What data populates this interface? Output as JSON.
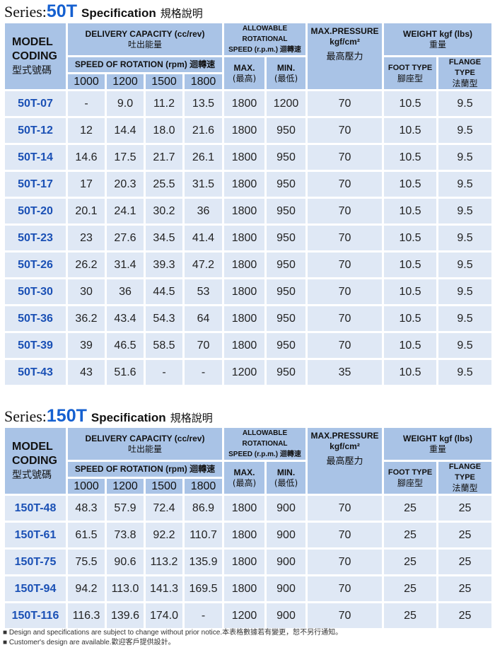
{
  "headers": {
    "model": "MODEL",
    "coding": "CODING",
    "model_cn": "型式號碼",
    "delivery": "DELIVERY CAPACITY (cc/rev)",
    "delivery_cn": "吐出能量",
    "speed_rot": "SPEED OF ROTATION (rpm) 迴轉速",
    "allow": "ALLOWABLE ROTATIONAL",
    "allow2": "SPEED (r.p.m.) 迴轉速",
    "max": "MAX.",
    "max_cn": "(最高)",
    "min": "MIN.",
    "min_cn": "(最低)",
    "pressure": "MAX.PRESSURE",
    "pressure_unit": "kgf/cm²",
    "pressure_cn": "最高壓力",
    "weight": "WEIGHT kgf (lbs)",
    "weight_cn": "重量",
    "foot": "FOOT TYPE",
    "foot_cn": "腳座型",
    "flange": "FLANGE TYPE",
    "flange_cn": "法蘭型",
    "speeds": [
      "1000",
      "1200",
      "1500",
      "1800"
    ]
  },
  "tables": [
    {
      "series_prefix": "Series:",
      "series": "50T",
      "spec": "Specification",
      "spec_cn": "規格說明",
      "rows": [
        [
          "50T-07",
          "-",
          "9.0",
          "11.2",
          "13.5",
          "1800",
          "1200",
          "70",
          "10.5",
          "9.5"
        ],
        [
          "50T-12",
          "12",
          "14.4",
          "18.0",
          "21.6",
          "1800",
          "950",
          "70",
          "10.5",
          "9.5"
        ],
        [
          "50T-14",
          "14.6",
          "17.5",
          "21.7",
          "26.1",
          "1800",
          "950",
          "70",
          "10.5",
          "9.5"
        ],
        [
          "50T-17",
          "17",
          "20.3",
          "25.5",
          "31.5",
          "1800",
          "950",
          "70",
          "10.5",
          "9.5"
        ],
        [
          "50T-20",
          "20.1",
          "24.1",
          "30.2",
          "36",
          "1800",
          "950",
          "70",
          "10.5",
          "9.5"
        ],
        [
          "50T-23",
          "23",
          "27.6",
          "34.5",
          "41.4",
          "1800",
          "950",
          "70",
          "10.5",
          "9.5"
        ],
        [
          "50T-26",
          "26.2",
          "31.4",
          "39.3",
          "47.2",
          "1800",
          "950",
          "70",
          "10.5",
          "9.5"
        ],
        [
          "50T-30",
          "30",
          "36",
          "44.5",
          "53",
          "1800",
          "950",
          "70",
          "10.5",
          "9.5"
        ],
        [
          "50T-36",
          "36.2",
          "43.4",
          "54.3",
          "64",
          "1800",
          "950",
          "70",
          "10.5",
          "9.5"
        ],
        [
          "50T-39",
          "39",
          "46.5",
          "58.5",
          "70",
          "1800",
          "950",
          "70",
          "10.5",
          "9.5"
        ],
        [
          "50T-43",
          "43",
          "51.6",
          "-",
          "-",
          "1200",
          "950",
          "35",
          "10.5",
          "9.5"
        ]
      ]
    },
    {
      "series_prefix": "Series:",
      "series": "150T",
      "spec": "Specification",
      "spec_cn": "規格說明",
      "rows": [
        [
          "150T-48",
          "48.3",
          "57.9",
          "72.4",
          "86.9",
          "1800",
          "900",
          "70",
          "25",
          "25"
        ],
        [
          "150T-61",
          "61.5",
          "73.8",
          "92.2",
          "110.7",
          "1800",
          "900",
          "70",
          "25",
          "25"
        ],
        [
          "150T-75",
          "75.5",
          "90.6",
          "113.2",
          "135.9",
          "1800",
          "900",
          "70",
          "25",
          "25"
        ],
        [
          "150T-94",
          "94.2",
          "113.0",
          "141.3",
          "169.5",
          "1800",
          "900",
          "70",
          "25",
          "25"
        ],
        [
          "150T-116",
          "116.3",
          "139.6",
          "174.0",
          "-",
          "1200",
          "900",
          "70",
          "25",
          "25"
        ]
      ]
    }
  ],
  "notes": [
    "■ Design and specifications are subject to change without prior notice.本表格數據若有變更，恕不另行通知。",
    "■ Customer's design are available.歡迎客戶提供設計。"
  ]
}
